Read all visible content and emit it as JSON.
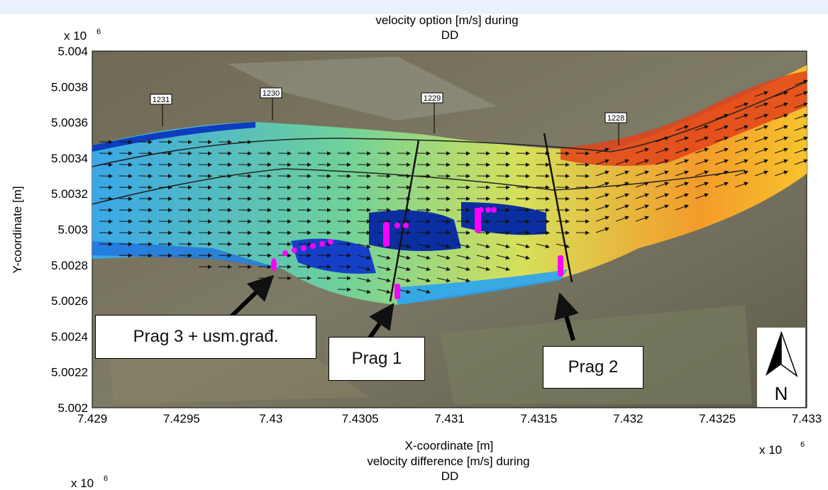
{
  "title_line1": "velocity option [m/s] during",
  "title_line2": "DD",
  "exponent_y": "x 10",
  "exponent_y_power": "6",
  "exponent_x": "x 10",
  "exponent_x_power": "6",
  "chart_data": {
    "type": "heatmap",
    "xlabel": "X-coordinate [m]",
    "ylabel": "Y-coordinate [m]",
    "xlim": [
      7.429,
      7.433
    ],
    "ylim": [
      5.002,
      5.004
    ],
    "x_ticks": [
      "7.429",
      "7.4295",
      "7.43",
      "7.4305",
      "7.431",
      "7.4315",
      "7.432",
      "7.4325",
      "7.433"
    ],
    "y_ticks": [
      "5.002",
      "5.0022",
      "5.0024",
      "5.0026",
      "5.0028",
      "5.003",
      "5.0032",
      "5.0034",
      "5.0036",
      "5.0038",
      "5.004"
    ],
    "profiles": [
      "1231",
      "1230",
      "1229",
      "1228"
    ],
    "annotations": [
      "Prag 3 + usm.građ.",
      "Prag 1",
      "Prag 2"
    ],
    "north_label": "N"
  },
  "bottom_title_line1": "velocity difference [m/s] during",
  "bottom_title_line2": "DD",
  "bottom_exponent": "x 10",
  "bottom_exponent_power": "6"
}
